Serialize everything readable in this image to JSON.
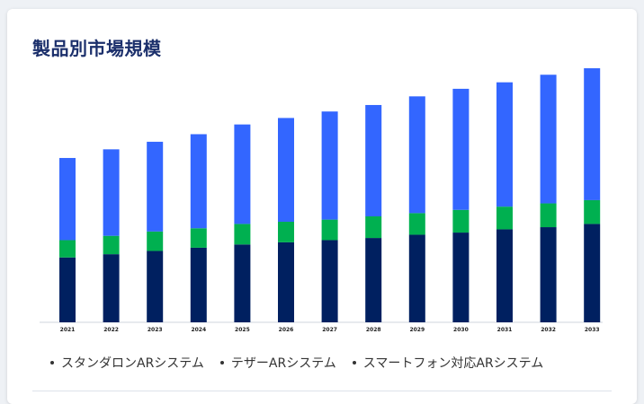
{
  "title": "製品別市場規模",
  "chart_data": {
    "type": "bar",
    "stacked": true,
    "categories": [
      "2021",
      "2022",
      "2023",
      "2024",
      "2025",
      "2026",
      "2027",
      "2028",
      "2029",
      "2030",
      "2031",
      "2032",
      "2033"
    ],
    "series": [
      {
        "name": "スタンダロンARシステム",
        "color": "#002060",
        "values": [
          60,
          63,
          66,
          69,
          72,
          74,
          76,
          78,
          81,
          83,
          86,
          88,
          91
        ]
      },
      {
        "name": "テザーARシステム",
        "color": "#00b050",
        "values": [
          16,
          17,
          18,
          18,
          19,
          19,
          19,
          20,
          20,
          21,
          21,
          22,
          22
        ]
      },
      {
        "name": "スマートフォン対応ARシステム",
        "color": "#3366ff",
        "values": [
          76,
          80,
          83,
          87,
          92,
          96,
          100,
          103,
          108,
          112,
          115,
          119,
          122
        ]
      }
    ],
    "ylim": [
      0,
      240
    ],
    "grid": false,
    "legend_position": "bottom"
  }
}
